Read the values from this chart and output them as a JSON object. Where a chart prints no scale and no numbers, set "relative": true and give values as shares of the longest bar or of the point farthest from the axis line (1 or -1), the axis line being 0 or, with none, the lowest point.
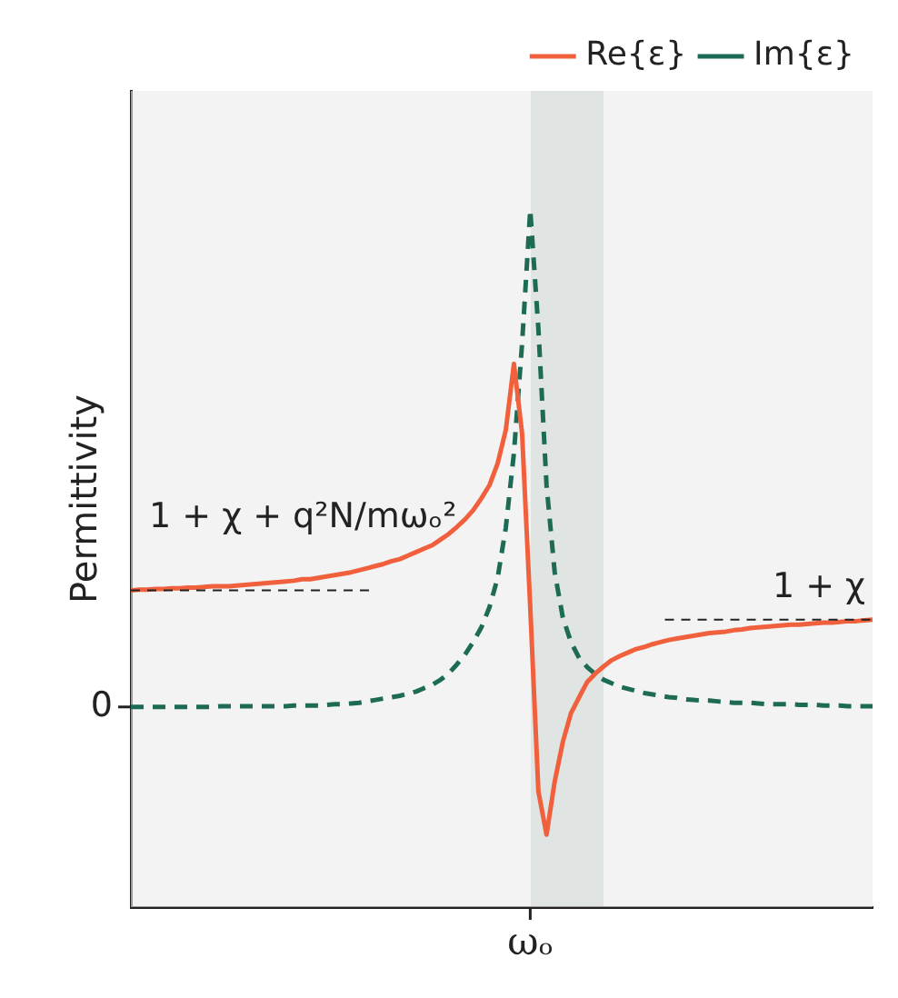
{
  "chart_data": {
    "type": "line",
    "relative": true,
    "ylabel": "Permittivity",
    "legend": "top right",
    "grid": false,
    "categories": [
      null,
      null,
      null,
      null,
      null,
      null,
      null,
      null,
      null,
      null,
      null,
      null,
      null,
      null,
      null,
      null,
      null,
      null,
      null,
      null,
      null,
      null,
      null,
      null,
      null,
      null,
      null,
      null,
      null,
      null,
      null,
      null,
      null,
      null,
      null,
      null,
      null,
      null,
      null,
      null,
      null,
      null,
      null,
      null,
      null,
      null,
      null,
      null,
      null,
      null,
      null,
      null,
      null,
      null,
      null,
      null,
      null,
      null,
      null,
      null,
      null,
      null,
      null,
      null,
      null,
      null,
      null,
      null,
      null,
      null,
      null,
      null,
      null,
      null,
      null,
      null,
      null,
      null,
      null,
      null,
      null,
      null,
      null,
      null,
      null,
      null,
      null,
      null,
      null,
      null,
      null,
      null
    ],
    "series": [
      {
        "name": "Re{ε}",
        "color": "#f0603c",
        "line_style": "solid",
        "values": [
          0.454,
          0.455,
          0.455,
          0.456,
          0.456,
          0.457,
          0.457,
          0.458,
          0.458,
          0.459,
          0.46,
          0.46,
          0.46,
          0.461,
          0.462,
          0.463,
          0.464,
          0.465,
          0.466,
          0.467,
          0.468,
          0.47,
          0.47,
          0.472,
          0.474,
          0.476,
          0.478,
          0.48,
          0.483,
          0.486,
          0.489,
          0.492,
          0.496,
          0.499,
          0.504,
          0.509,
          0.514,
          0.519,
          0.527,
          0.535,
          0.545,
          0.556,
          0.569,
          0.586,
          0.605,
          0.636,
          0.684,
          0.779,
          0.679,
          0.43,
          0.166,
          0.104,
          0.18,
          0.237,
          0.278,
          0.301,
          0.323,
          0.335,
          0.345,
          0.354,
          0.36,
          0.365,
          0.37,
          0.373,
          0.377,
          0.38,
          0.383,
          0.385,
          0.387,
          0.389,
          0.391,
          0.393,
          0.394,
          0.395,
          0.397,
          0.398,
          0.4,
          0.401,
          0.402,
          0.403,
          0.404,
          0.405,
          0.405,
          0.406,
          0.407,
          0.408,
          0.408,
          0.409,
          0.41,
          0.41,
          0.411,
          0.412
        ]
      },
      {
        "name": "Im{ε}",
        "color": "#1e6b55",
        "line_style": "dashed",
        "values": [
          0.287,
          0.287,
          0.287,
          0.287,
          0.287,
          0.287,
          0.287,
          0.287,
          0.287,
          0.287,
          0.287,
          0.288,
          0.288,
          0.288,
          0.288,
          0.288,
          0.288,
          0.288,
          0.288,
          0.288,
          0.289,
          0.289,
          0.289,
          0.289,
          0.29,
          0.291,
          0.291,
          0.292,
          0.293,
          0.295,
          0.297,
          0.299,
          0.301,
          0.303,
          0.306,
          0.309,
          0.314,
          0.319,
          0.326,
          0.335,
          0.348,
          0.362,
          0.38,
          0.401,
          0.43,
          0.472,
          0.544,
          0.651,
          0.808,
          1,
          0.829,
          0.605,
          0.48,
          0.415,
          0.38,
          0.357,
          0.344,
          0.334,
          0.326,
          0.321,
          0.316,
          0.313,
          0.31,
          0.307,
          0.305,
          0.303,
          0.301,
          0.3,
          0.298,
          0.297,
          0.296,
          0.296,
          0.295,
          0.294,
          0.293,
          0.293,
          0.293,
          0.292,
          0.291,
          0.291,
          0.291,
          0.291,
          0.29,
          0.29,
          0.29,
          0.289,
          0.289,
          0.289,
          0.288,
          0.288,
          0.288,
          0.288
        ]
      }
    ],
    "annotations": [
      "1 + χ + q²N/mωₒ²",
      "1 + χ",
      "0",
      "ωₒ"
    ]
  }
}
